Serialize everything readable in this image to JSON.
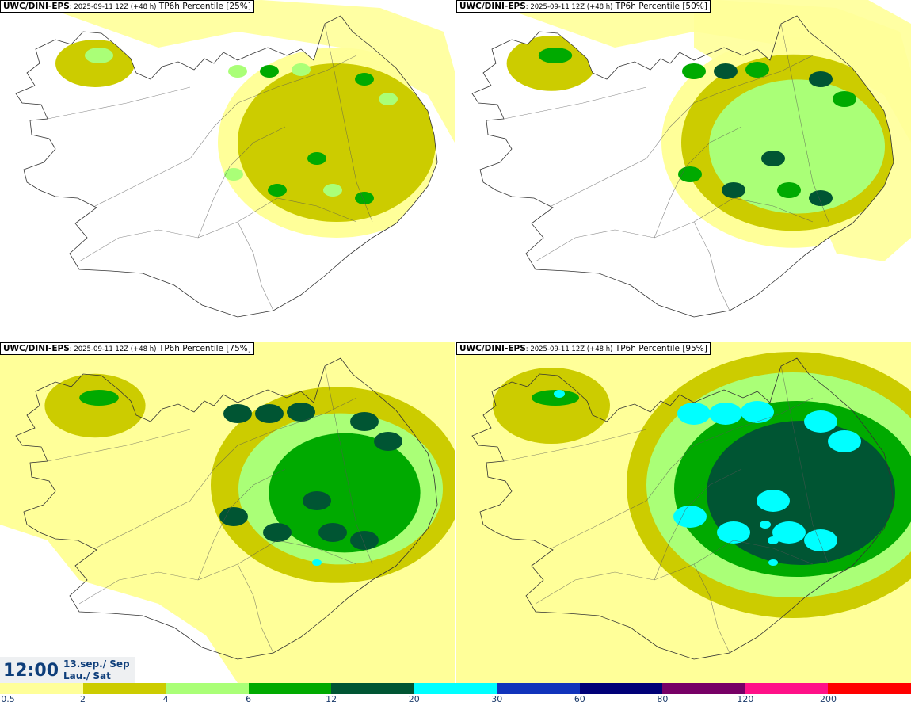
{
  "panels": [
    {
      "model": "UWC/DINI-EPS",
      "run": ": 2025-09-11 12Z (+48 h)",
      "product": " TP6h Percentile [25%]",
      "level": 0
    },
    {
      "model": "UWC/DINI-EPS",
      "run": ": 2025-09-11 12Z (+48 h)",
      "product": " TP6h Percentile [50%]",
      "level": 1
    },
    {
      "model": "UWC/DINI-EPS",
      "run": ": 2025-09-11 12Z (+48 h)",
      "product": " TP6h Percentile [75%]",
      "level": 2
    },
    {
      "model": "UWC/DINI-EPS",
      "run": ": 2025-09-11 12Z (+48 h)",
      "product": " TP6h Percentile [95%]",
      "level": 3
    }
  ],
  "valid_time": {
    "time": "12:00",
    "date_line1": "13.sep./ Sep",
    "date_line2": "Lau./ Sat"
  },
  "legend": {
    "colors": [
      "#ffff99",
      "#cccc00",
      "#aaff77",
      "#00aa00",
      "#005533",
      "#00ffff",
      "#1133bb",
      "#000077",
      "#770066",
      "#ff1188",
      "#ff0000"
    ],
    "labels": [
      "0.5",
      "2",
      "4",
      "6",
      "12",
      "20",
      "30",
      "60",
      "80",
      "120",
      "200"
    ]
  }
}
